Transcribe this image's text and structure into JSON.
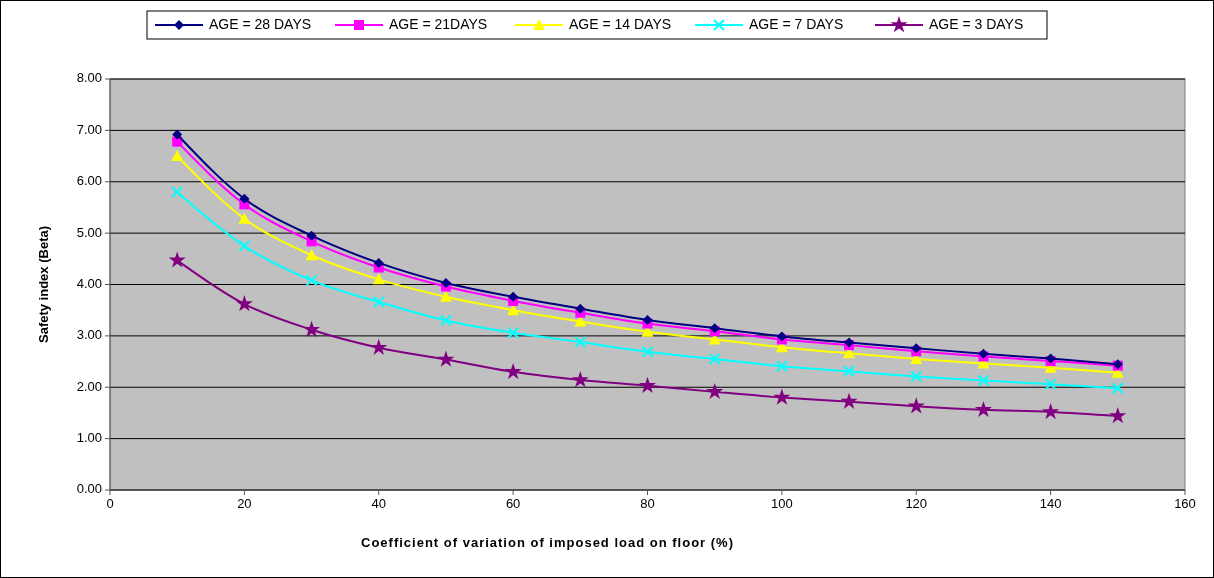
{
  "chart_data": {
    "type": "line",
    "xlabel": "Coefficient of variation of imposed load on floor (%)",
    "ylabel": "Safety index (Beta)",
    "x": [
      10,
      20,
      30,
      40,
      50,
      60,
      70,
      80,
      90,
      100,
      110,
      120,
      130,
      140,
      150
    ],
    "xlim": [
      0,
      160
    ],
    "xticks": [
      0,
      20,
      40,
      60,
      80,
      100,
      120,
      140,
      160
    ],
    "ylim": [
      0,
      8
    ],
    "yticks": [
      {
        "value": 0,
        "label": "0.00"
      },
      {
        "value": 1,
        "label": "1.00"
      },
      {
        "value": 2,
        "label": "2.00"
      },
      {
        "value": 3,
        "label": "3.00"
      },
      {
        "value": 4,
        "label": "4.00"
      },
      {
        "value": 5,
        "label": "5.00"
      },
      {
        "value": 6,
        "label": "6.00"
      },
      {
        "value": 7,
        "label": "7.00"
      },
      {
        "value": 8,
        "label": "8.00"
      }
    ],
    "grid": "y",
    "legend": "top",
    "line_style": "solid",
    "series": [
      {
        "name": "AGE = 28 DAYS",
        "color": "#000080",
        "marker": "diamond",
        "values": [
          6.92,
          5.67,
          4.95,
          4.42,
          4.03,
          3.76,
          3.53,
          3.31,
          3.15,
          2.99,
          2.87,
          2.76,
          2.65,
          2.56,
          2.45
        ]
      },
      {
        "name": "AGE = 21DAYS",
        "color": "#ff00ff",
        "marker": "square",
        "values": [
          6.78,
          5.56,
          4.84,
          4.33,
          3.96,
          3.68,
          3.45,
          3.24,
          3.09,
          2.93,
          2.82,
          2.7,
          2.6,
          2.51,
          2.42
        ]
      },
      {
        "name": "AGE = 14 DAYS",
        "color": "#ffff00",
        "marker": "triangle",
        "values": [
          6.5,
          5.28,
          4.57,
          4.1,
          3.76,
          3.5,
          3.28,
          3.08,
          2.93,
          2.78,
          2.66,
          2.55,
          2.46,
          2.38,
          2.28
        ]
      },
      {
        "name": "AGE = 7 DAYS",
        "color": "#00ffff",
        "marker": "cross",
        "values": [
          5.8,
          4.75,
          4.08,
          3.66,
          3.3,
          3.06,
          2.88,
          2.69,
          2.55,
          2.41,
          2.31,
          2.21,
          2.13,
          2.06,
          1.98
        ]
      },
      {
        "name": "AGE = 3 DAYS",
        "color": "#800080",
        "marker": "star",
        "values": [
          4.47,
          3.62,
          3.12,
          2.77,
          2.54,
          2.3,
          2.14,
          2.03,
          1.91,
          1.8,
          1.72,
          1.63,
          1.56,
          1.52,
          1.44
        ]
      }
    ]
  }
}
